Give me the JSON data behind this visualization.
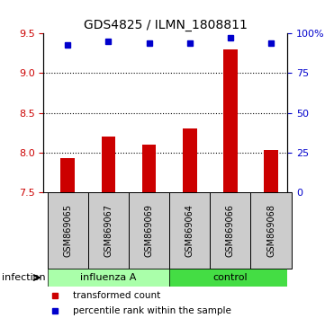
{
  "title": "GDS4825 / ILMN_1808811",
  "samples": [
    "GSM869065",
    "GSM869067",
    "GSM869069",
    "GSM869064",
    "GSM869066",
    "GSM869068"
  ],
  "transformed_counts": [
    7.93,
    8.2,
    8.1,
    8.3,
    9.3,
    8.03
  ],
  "percentile_values": [
    93,
    95,
    94,
    94,
    97,
    94
  ],
  "ylim_left": [
    7.5,
    9.5
  ],
  "yticks_left": [
    7.5,
    8.0,
    8.5,
    9.0,
    9.5
  ],
  "ylim_right": [
    0,
    100
  ],
  "yticks_right": [
    0,
    25,
    50,
    75,
    100
  ],
  "yticklabels_right": [
    "0",
    "25",
    "50",
    "75",
    "100%"
  ],
  "bar_color": "#cc0000",
  "dot_color": "#0000cc",
  "bar_bottom": 7.5,
  "group_configs": [
    {
      "label": "influenza A",
      "x_start": -0.5,
      "x_end": 2.5,
      "color": "#aaffaa"
    },
    {
      "label": "control",
      "x_start": 2.5,
      "x_end": 5.5,
      "color": "#44dd44"
    }
  ],
  "group_label": "infection",
  "legend_bar_label": "transformed count",
  "legend_dot_label": "percentile rank within the sample",
  "tick_label_color_left": "#cc0000",
  "tick_label_color_right": "#0000cc",
  "grid_yticks": [
    8.0,
    8.5,
    9.0
  ],
  "bar_width": 0.35,
  "xlim": [
    -0.6,
    5.4
  ]
}
